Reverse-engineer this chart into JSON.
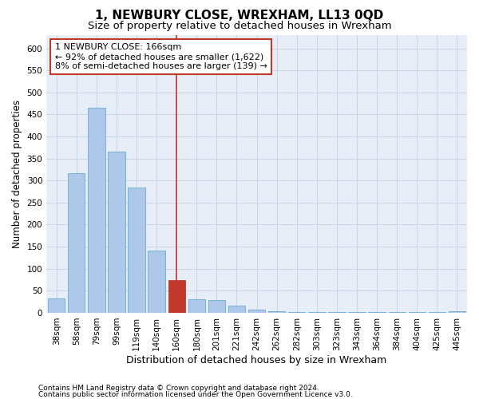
{
  "title": "1, NEWBURY CLOSE, WREXHAM, LL13 0QD",
  "subtitle": "Size of property relative to detached houses in Wrexham",
  "xlabel": "Distribution of detached houses by size in Wrexham",
  "ylabel": "Number of detached properties",
  "categories": [
    "38sqm",
    "58sqm",
    "79sqm",
    "99sqm",
    "119sqm",
    "140sqm",
    "160sqm",
    "180sqm",
    "201sqm",
    "221sqm",
    "242sqm",
    "262sqm",
    "282sqm",
    "303sqm",
    "323sqm",
    "343sqm",
    "364sqm",
    "384sqm",
    "404sqm",
    "425sqm",
    "445sqm"
  ],
  "values": [
    32,
    317,
    465,
    365,
    284,
    142,
    75,
    31,
    29,
    16,
    7,
    4,
    2,
    2,
    2,
    2,
    2,
    1,
    1,
    1,
    4
  ],
  "highlight_index": 6,
  "highlight_color": "#c0392b",
  "bar_color": "#adc8e8",
  "bar_edge_color": "#6aaad4",
  "grid_color": "#c8d4e8",
  "background_color": "#e8eef8",
  "annotation_text": "1 NEWBURY CLOSE: 166sqm\n← 92% of detached houses are smaller (1,622)\n8% of semi-detached houses are larger (139) →",
  "annotation_box_color": "#ffffff",
  "annotation_box_edge": "#c0392b",
  "ylim": [
    0,
    630
  ],
  "yticks": [
    0,
    50,
    100,
    150,
    200,
    250,
    300,
    350,
    400,
    450,
    500,
    550,
    600
  ],
  "footer_line1": "Contains HM Land Registry data © Crown copyright and database right 2024.",
  "footer_line2": "Contains public sector information licensed under the Open Government Licence v3.0.",
  "title_fontsize": 11,
  "subtitle_fontsize": 9.5,
  "xlabel_fontsize": 9,
  "ylabel_fontsize": 8.5,
  "tick_fontsize": 7.5,
  "annotation_fontsize": 8,
  "footer_fontsize": 6.5
}
